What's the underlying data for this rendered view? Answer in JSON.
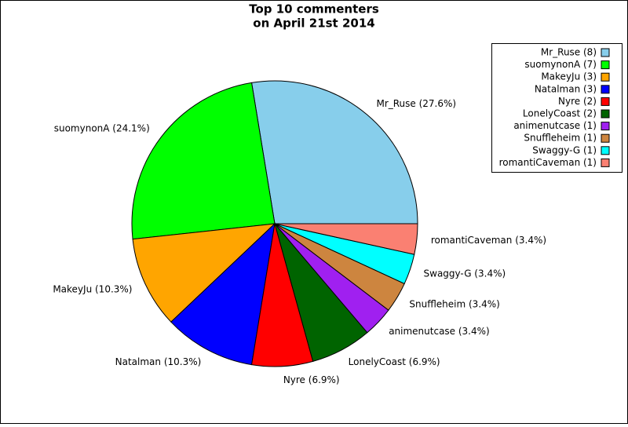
{
  "chart_data": {
    "type": "pie",
    "title": [
      "Top 10 commenters",
      "on April 21st 2014"
    ],
    "categories": [
      "Mr_Ruse",
      "suomynonA",
      "MakeyJu",
      "Natalman",
      "Nyre",
      "LonelyCoast",
      "animenutcase",
      "Snuffleheim",
      "Swaggy-G",
      "romantiCaveman"
    ],
    "values": [
      8,
      7,
      3,
      3,
      2,
      2,
      1,
      1,
      1,
      1
    ],
    "slice_labels": [
      "Mr_Ruse (27.6%)",
      "suomynonA (24.1%)",
      "MakeyJu (10.3%)",
      "Natalman (10.3%)",
      "Nyre (6.9%)",
      "LonelyCoast (6.9%)",
      "animenutcase (3.4%)",
      "Snuffleheim (3.4%)",
      "Swaggy-G (3.4%)",
      "romantiCaveman (3.4%)"
    ],
    "legend_labels": [
      "Mr_Ruse (8)",
      "suomynonA (7)",
      "MakeyJu (3)",
      "Natalman (3)",
      "Nyre (2)",
      "LonelyCoast (2)",
      "animenutcase (1)",
      "Snuffleheim (1)",
      "Swaggy-G (1)",
      "romantiCaveman (1)"
    ],
    "colors": [
      "#87ceeb",
      "#00ff00",
      "#ffa500",
      "#0000ff",
      "#ff0000",
      "#006400",
      "#a020f0",
      "#cd853f",
      "#00ffff",
      "#fa8072"
    ],
    "legend": "upper right"
  }
}
